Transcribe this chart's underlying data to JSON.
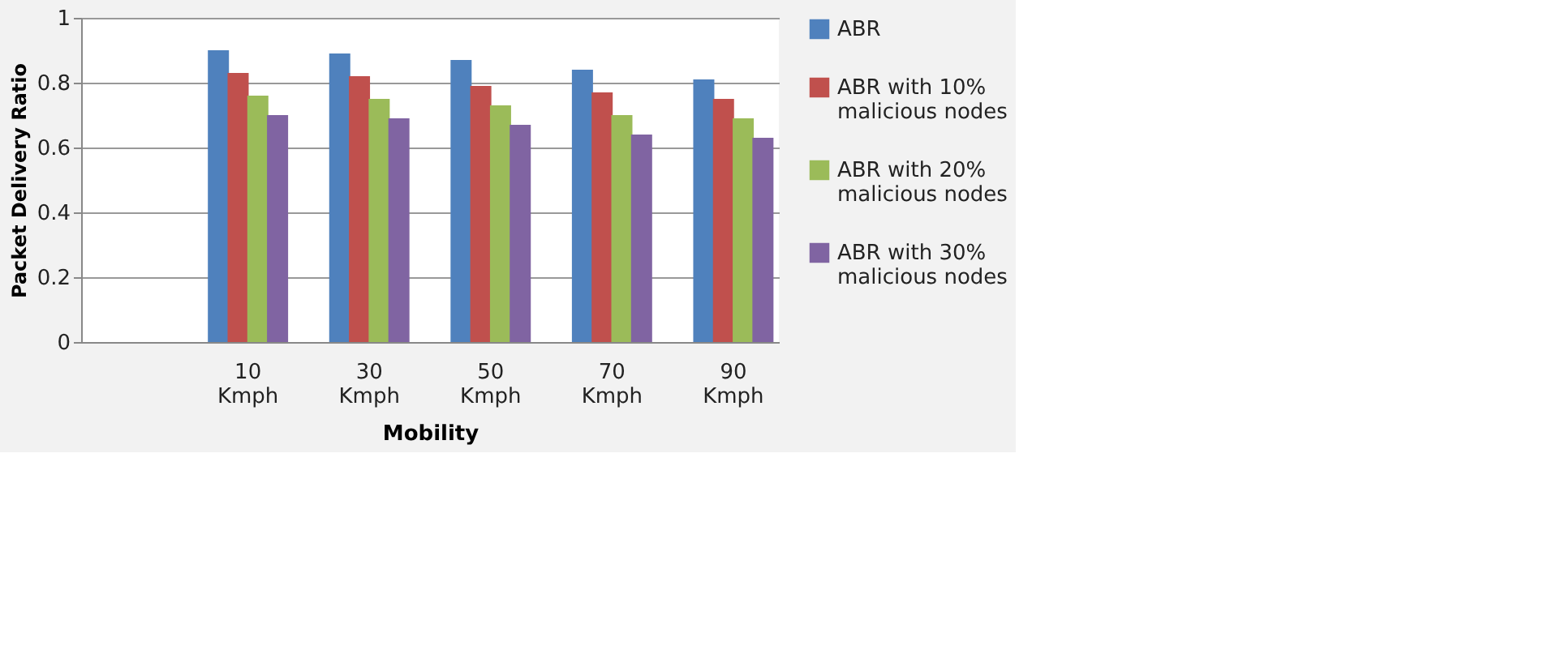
{
  "chart_data": {
    "type": "bar",
    "xlabel": "Mobility",
    "ylabel": "Packet Delivery Ratio",
    "categories": [
      null,
      "10 Kmph",
      "30 Kmph",
      "50 Kmph",
      "70 Kmph",
      "90 Kmph"
    ],
    "series": [
      {
        "name": "ABR",
        "color": "#4f81bd",
        "values": [
          null,
          0.9,
          0.89,
          0.87,
          0.84,
          0.81
        ]
      },
      {
        "name": "ABR with 10% malicious nodes",
        "color": "#c0504d",
        "values": [
          null,
          0.83,
          0.82,
          0.79,
          0.77,
          0.75
        ]
      },
      {
        "name": "ABR with 20% malicious nodes",
        "color": "#9bbb59",
        "values": [
          null,
          0.76,
          0.75,
          0.73,
          0.7,
          0.69
        ]
      },
      {
        "name": "ABR with 30% malicious nodes",
        "color": "#8064a2",
        "values": [
          null,
          0.7,
          0.69,
          0.67,
          0.64,
          0.63
        ]
      }
    ],
    "ylim": [
      0,
      1
    ],
    "yticks": [
      0,
      0.2,
      0.4,
      0.6,
      0.8,
      1
    ],
    "grid": "y",
    "legend": "right"
  }
}
